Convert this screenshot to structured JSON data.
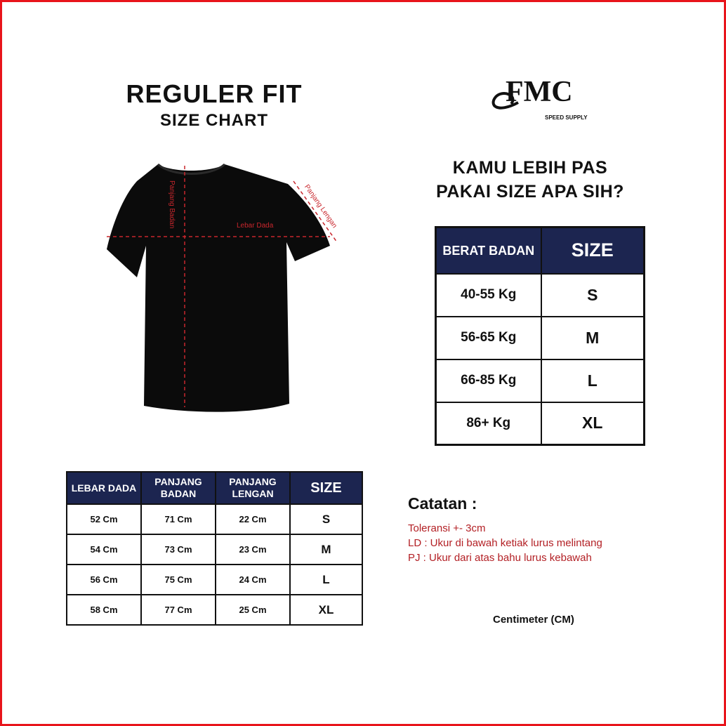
{
  "header": {
    "title": "REGULER FIT",
    "subtitle": "SIZE CHART"
  },
  "logo": {
    "text": "FMC",
    "tagline": "SPEED SUPPLY"
  },
  "question": {
    "line1": "KAMU LEBIH PAS",
    "line2": "PAKAI SIZE APA SIH?"
  },
  "shirt_labels": {
    "body_length": "Panjang Badan",
    "chest_width": "Lebar Dada",
    "sleeve_length": "Panjang Lengan"
  },
  "weight_table": {
    "headers": [
      "BERAT BADAN",
      "SIZE"
    ],
    "rows": [
      [
        "40-55 Kg",
        "S"
      ],
      [
        "56-65 Kg",
        "M"
      ],
      [
        "66-85 Kg",
        "L"
      ],
      [
        "86+ Kg",
        "XL"
      ]
    ]
  },
  "measure_table": {
    "headers": [
      "LEBAR DADA",
      "PANJANG BADAN",
      "PANJANG LENGAN",
      "SIZE"
    ],
    "rows": [
      [
        "52 Cm",
        "71 Cm",
        "22 Cm",
        "S"
      ],
      [
        "54 Cm",
        "73 Cm",
        "23 Cm",
        "M"
      ],
      [
        "56 Cm",
        "75 Cm",
        "24 Cm",
        "L"
      ],
      [
        "58 Cm",
        "77 Cm",
        "25 Cm",
        "XL"
      ]
    ]
  },
  "notes": {
    "title": "Catatan :",
    "items": [
      "Toleransi +- 3cm",
      "LD : Ukur di bawah ketiak lurus melintang",
      "PJ : Ukur dari atas bahu lurus kebawah"
    ]
  },
  "unit": "Centimeter (CM)",
  "colors": {
    "navy": "#1c2550",
    "red": "#e8141b",
    "note_red": "#b32025"
  }
}
